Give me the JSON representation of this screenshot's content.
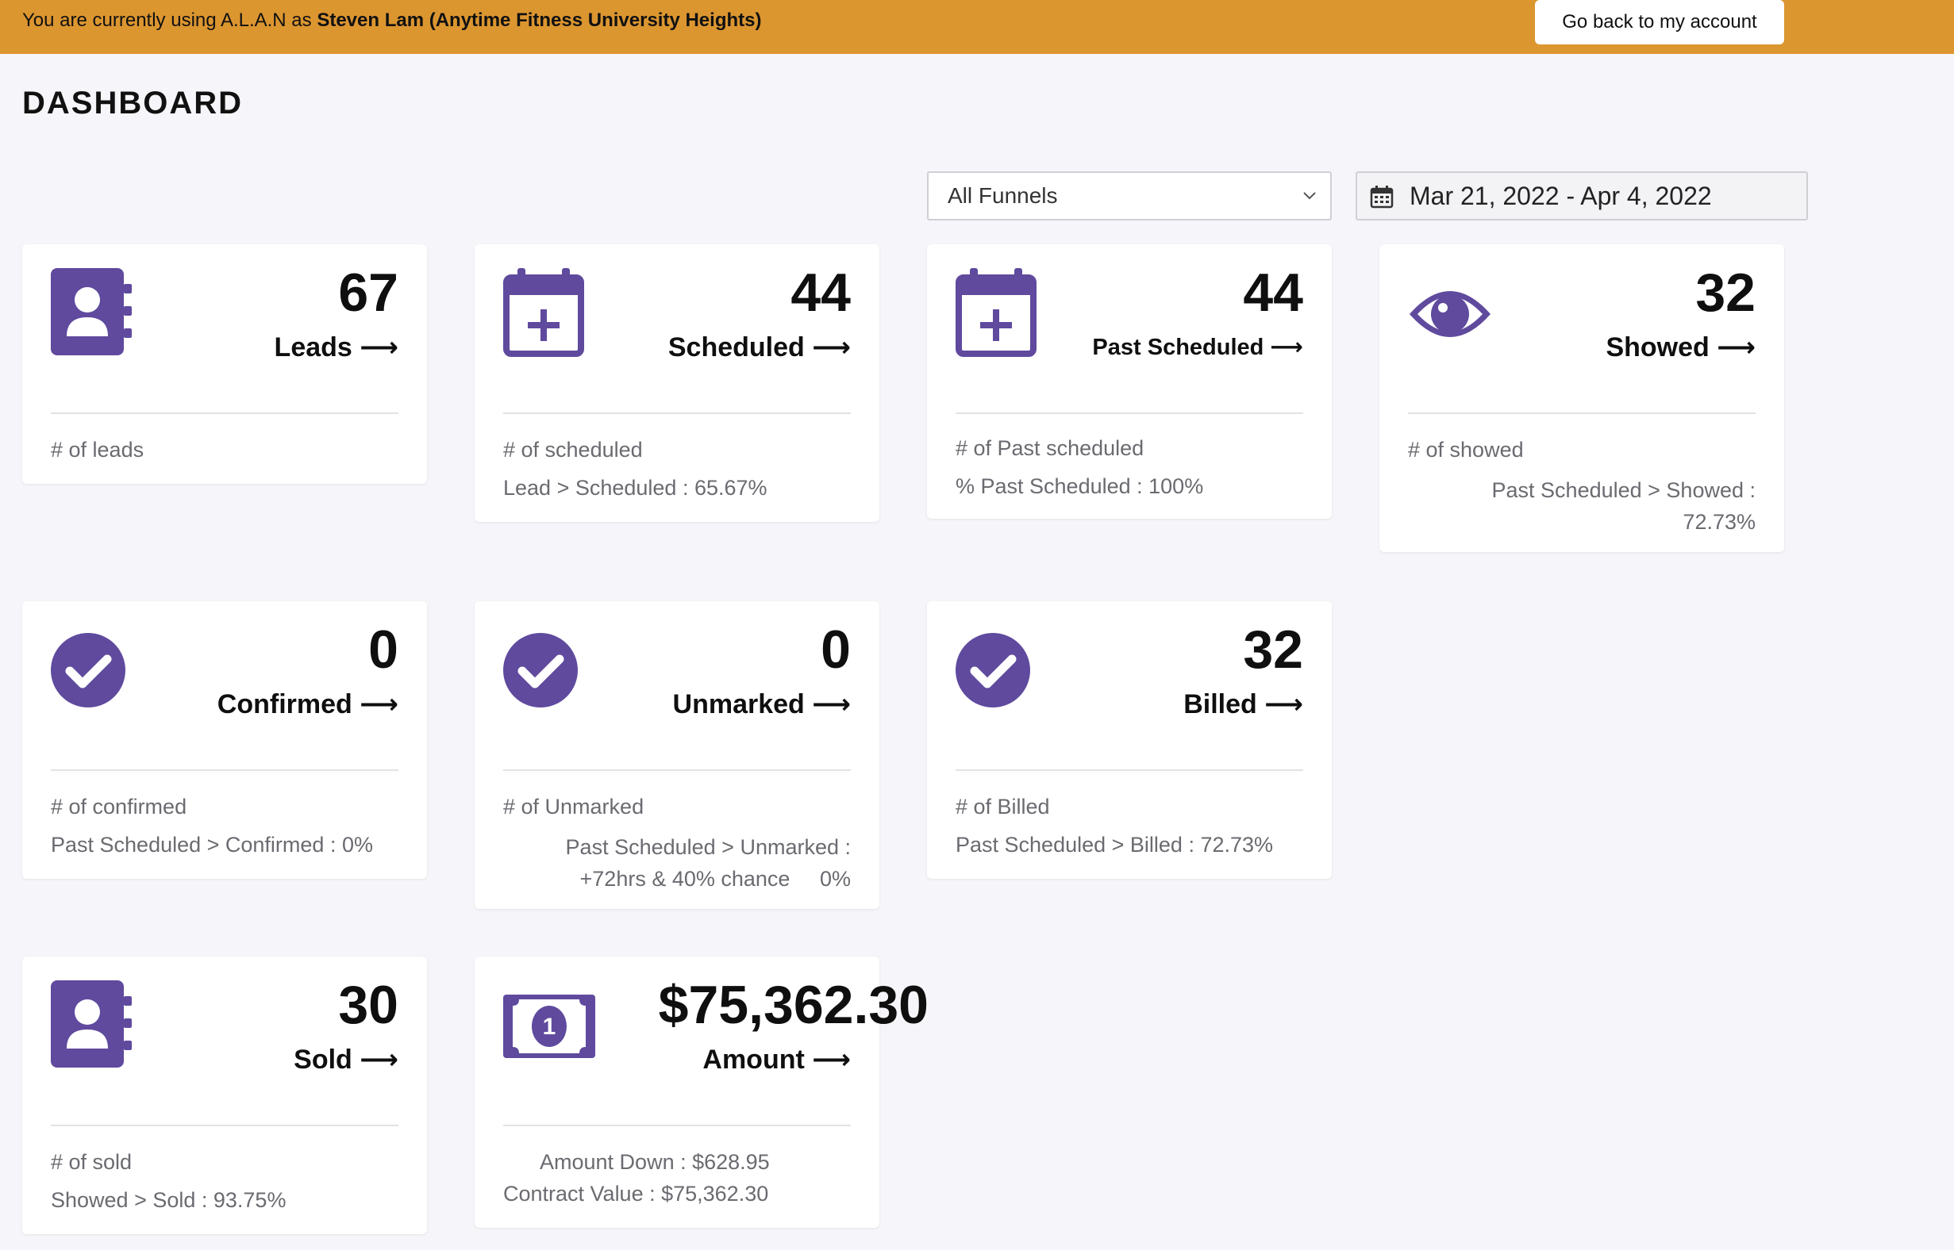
{
  "banner": {
    "prefix": "You are currently using A.L.A.N as ",
    "user": "Steven Lam (Anytime Fitness University Heights)",
    "back_button": "Go back to my account"
  },
  "page": {
    "title": "DASHBOARD"
  },
  "filters": {
    "funnel": "All Funnels",
    "date_range": "Mar 21, 2022 - Apr 4, 2022"
  },
  "accent": "#5f4a9e",
  "cards": {
    "leads": {
      "value": "67",
      "label": "Leads ⟶",
      "line1": "# of leads",
      "line2": ""
    },
    "scheduled": {
      "value": "44",
      "label": "Scheduled ⟶",
      "line1": "# of scheduled",
      "line2": "Lead > Scheduled : 65.67%"
    },
    "past_scheduled": {
      "value": "44",
      "label": "Past Scheduled ⟶",
      "line1": "# of Past scheduled",
      "line2": "% Past Scheduled : 100%"
    },
    "showed": {
      "value": "32",
      "label": "Showed ⟶",
      "line1": "# of showed",
      "line2a": "Past Scheduled > Showed :",
      "line2b": "72.73%"
    },
    "confirmed": {
      "value": "0",
      "label": "Confirmed ⟶",
      "line1": "# of confirmed",
      "line2": "Past Scheduled > Confirmed : 0%"
    },
    "unmarked": {
      "value": "0",
      "label": "Unmarked ⟶",
      "line1": "# of Unmarked",
      "line2a": "Past Scheduled > Unmarked :",
      "line2b": "+72hrs & 40% chance",
      "line2c": "0%"
    },
    "billed": {
      "value": "32",
      "label": "Billed ⟶",
      "line1": "# of Billed",
      "line2": "Past Scheduled > Billed : 72.73%"
    },
    "sold": {
      "value": "30",
      "label": "Sold ⟶",
      "line1": "# of sold",
      "line2": "Showed > Sold : 93.75%"
    },
    "amount": {
      "value": "$75,362.30",
      "label": "Amount ⟶",
      "line1": "Amount Down : $628.95",
      "line2": "Contract Value : $75,362.30"
    }
  }
}
